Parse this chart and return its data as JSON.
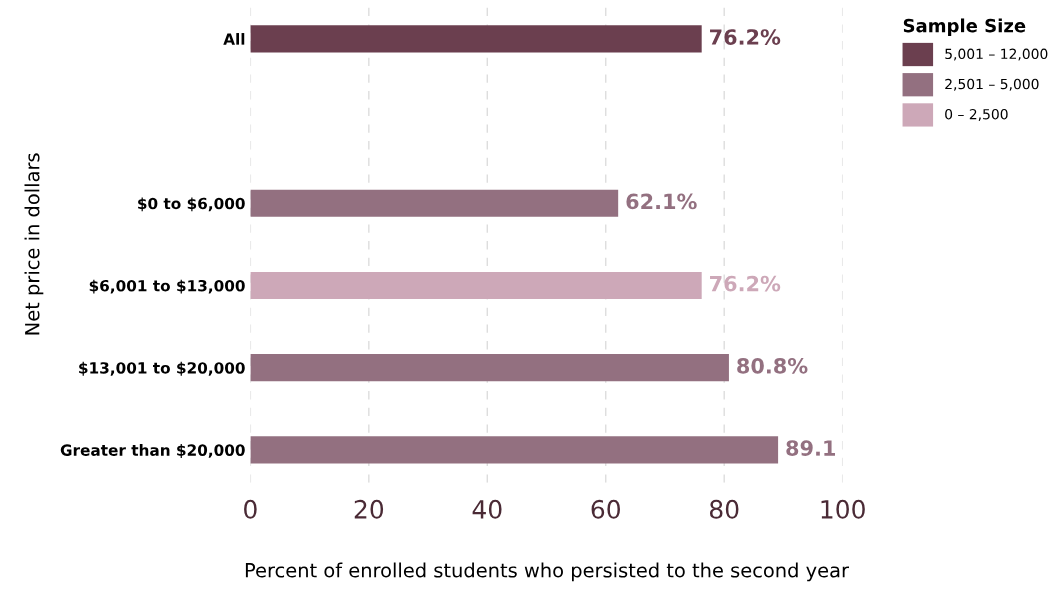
{
  "chart_data": {
    "type": "bar",
    "orientation": "horizontal",
    "stacked": true,
    "categories": [
      "All",
      null,
      "$0 to $6,000",
      "$6,001 to $13,000",
      "$13,001 to $20,000",
      "Greater than $20,000"
    ],
    "series": [
      {
        "name": "5,001 – 12,000",
        "color": "#6b3f4f",
        "values": [
          76.2,
          null,
          null,
          null,
          null,
          null
        ],
        "value_labels": [
          "76.2%",
          null,
          null,
          null,
          null,
          null
        ]
      },
      {
        "name": "2,501 – 5,000",
        "color": "#937080",
        "values": [
          null,
          null,
          62.1,
          null,
          80.8,
          89.1
        ],
        "value_labels": [
          null,
          null,
          "62.1%",
          null,
          "80.8%",
          "89.1"
        ]
      },
      {
        "name": "0 – 2,500",
        "color": "#cda8b8",
        "values": [
          null,
          null,
          null,
          76.2,
          null,
          null
        ],
        "value_labels": [
          null,
          null,
          null,
          "76.2%",
          null,
          null
        ]
      }
    ],
    "xlim": [
      0,
      100
    ],
    "xticks": [
      0,
      20,
      40,
      60,
      80,
      100
    ],
    "xlabel": "Percent of enrolled students who persisted to the second year",
    "ylabel": "Net price in dollars",
    "legend_title": "Sample Size",
    "legend": "top right",
    "grid": "x",
    "line_style": "dashed"
  }
}
